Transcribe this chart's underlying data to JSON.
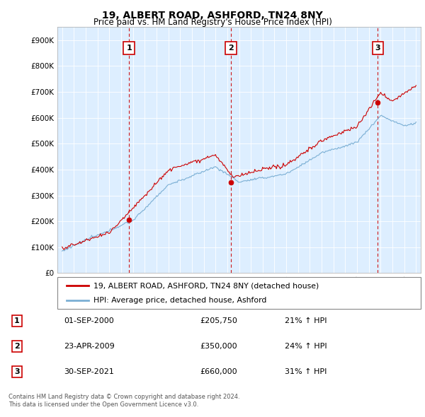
{
  "title": "19, ALBERT ROAD, ASHFORD, TN24 8NY",
  "subtitle": "Price paid vs. HM Land Registry's House Price Index (HPI)",
  "ylabel_ticks": [
    "£0",
    "£100K",
    "£200K",
    "£300K",
    "£400K",
    "£500K",
    "£600K",
    "£700K",
    "£800K",
    "£900K"
  ],
  "ytick_values": [
    0,
    100000,
    200000,
    300000,
    400000,
    500000,
    600000,
    700000,
    800000,
    900000
  ],
  "ylim": [
    0,
    950000
  ],
  "xlim_start": 1994.6,
  "xlim_end": 2025.4,
  "line1_color": "#cc0000",
  "line2_color": "#7bafd4",
  "chart_bg_color": "#ddeeff",
  "sale_marker_color": "#cc0000",
  "sale_marker_size": 5,
  "grid_color": "#ffffff",
  "background_color": "#ffffff",
  "annotation_box_color": "#ffffff",
  "annotation_border_color": "#cc0000",
  "sales": [
    {
      "num": 1,
      "year_x": 2000.67,
      "price": 205750,
      "date": "01-SEP-2000",
      "pct": "21%",
      "dir": "↑"
    },
    {
      "num": 2,
      "year_x": 2009.31,
      "price": 350000,
      "date": "23-APR-2009",
      "pct": "24%",
      "dir": "↑"
    },
    {
      "num": 3,
      "year_x": 2021.75,
      "price": 660000,
      "date": "30-SEP-2021",
      "pct": "31%",
      "dir": "↑"
    }
  ],
  "legend_label1": "19, ALBERT ROAD, ASHFORD, TN24 8NY (detached house)",
  "legend_label2": "HPI: Average price, detached house, Ashford",
  "footer_line1": "Contains HM Land Registry data © Crown copyright and database right 2024.",
  "footer_line2": "This data is licensed under the Open Government Licence v3.0.",
  "table_rows": [
    {
      "num": 1,
      "date": "01-SEP-2000",
      "price": "£205,750",
      "pct": "21% ↑ HPI"
    },
    {
      "num": 2,
      "date": "23-APR-2009",
      "price": "£350,000",
      "pct": "24% ↑ HPI"
    },
    {
      "num": 3,
      "date": "30-SEP-2021",
      "price": "£660,000",
      "pct": "31% ↑ HPI"
    }
  ]
}
